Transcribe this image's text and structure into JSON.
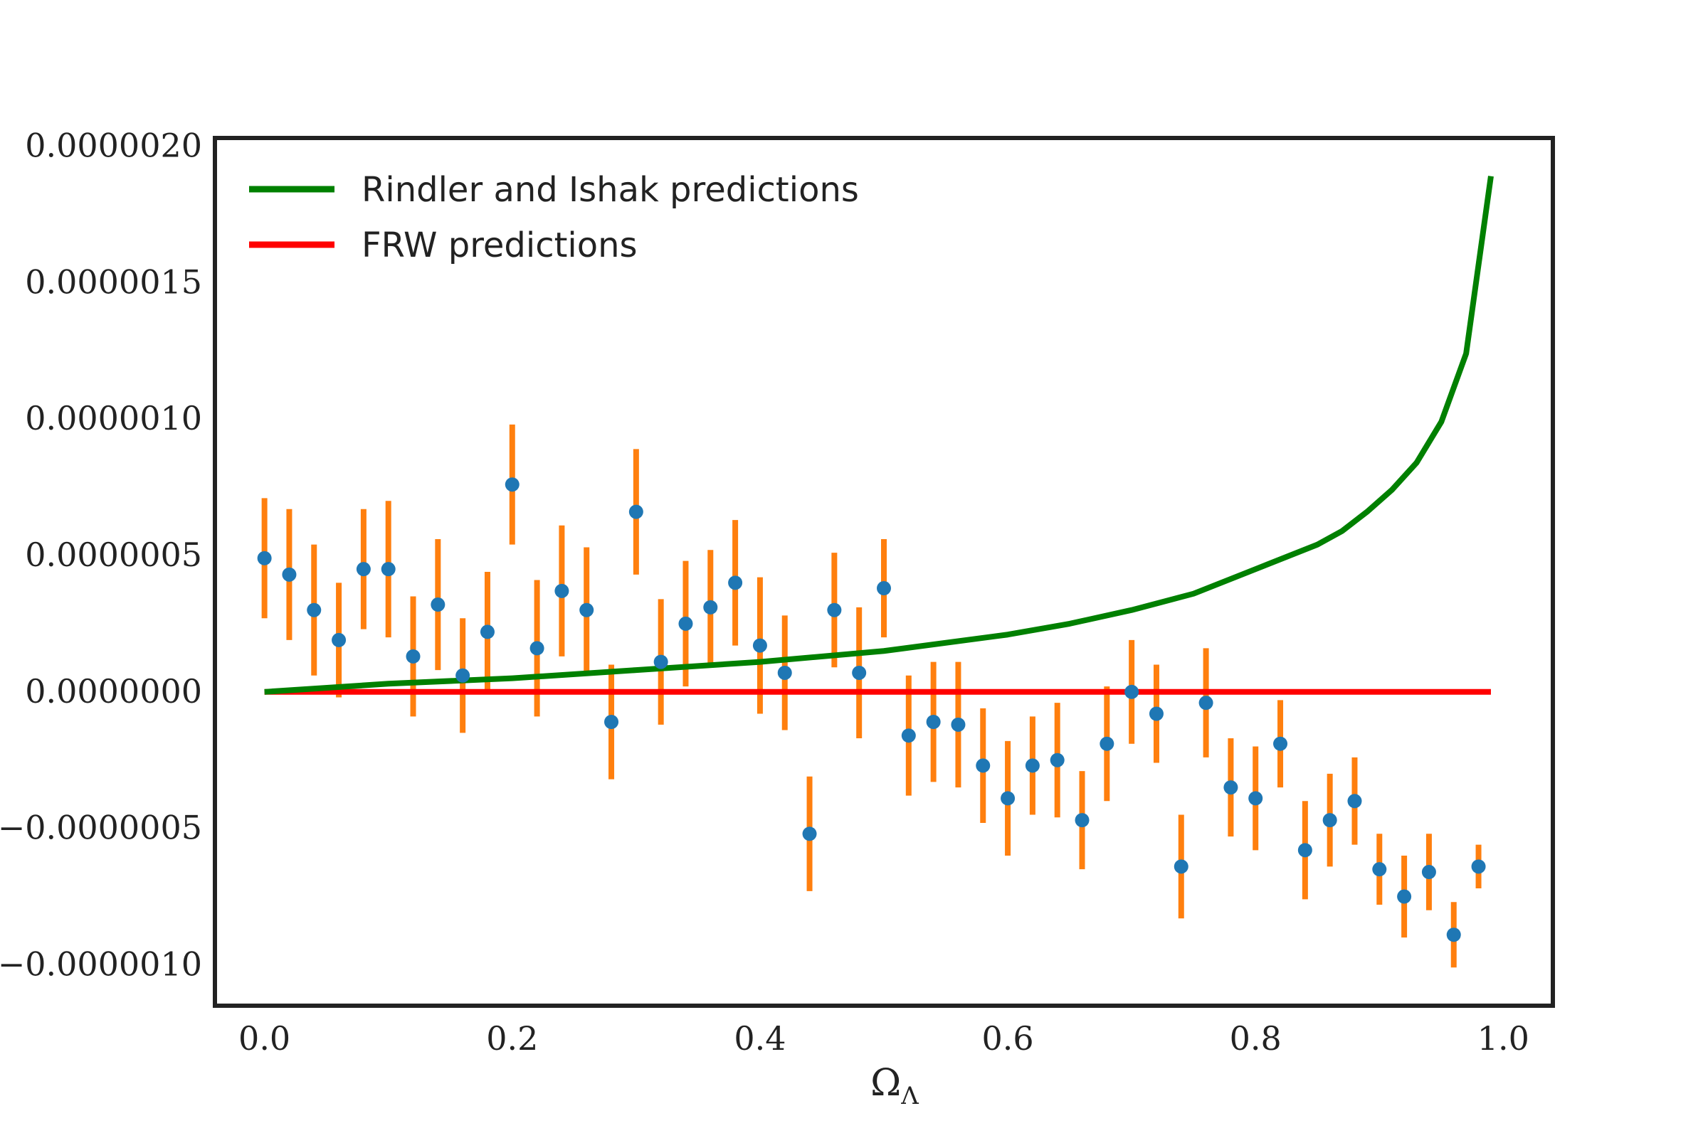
{
  "chart_data": {
    "type": "scatter",
    "xlabel": "Ω_Λ",
    "xlabel_main": "Ω",
    "xlabel_sub": "Λ",
    "ylabel": "",
    "xlim": [
      -0.04,
      1.04
    ],
    "ylim": [
      -1.15e-06,
      2.03e-06
    ],
    "xticks": [
      0.0,
      0.2,
      0.4,
      0.6,
      0.8,
      1.0
    ],
    "xtick_labels": [
      "0.0",
      "0.2",
      "0.4",
      "0.6",
      "0.8",
      "1.0"
    ],
    "yticks": [
      -1e-06,
      -5e-07,
      0.0,
      5e-07,
      1e-06,
      1.5e-06,
      2e-06
    ],
    "ytick_labels": [
      "−0.0000010",
      "−0.0000005",
      "0.0000000",
      "0.0000005",
      "0.0000010",
      "0.0000015",
      "0.0000020"
    ],
    "grid": false,
    "legend_position": "top-left",
    "legend": [
      {
        "label": "Rindler and Ishak predictions",
        "color": "#008000"
      },
      {
        "label": "FRW predictions",
        "color": "#ff0000"
      }
    ],
    "colors": {
      "points": "#1f77b4",
      "errorbars": "#ff7f0e",
      "rindler": "#008000",
      "frw": "#ff0000",
      "frame": "#222222"
    },
    "rindler_curve": {
      "name": "Rindler and Ishak predictions",
      "x": [
        0.0,
        0.1,
        0.2,
        0.3,
        0.4,
        0.5,
        0.6,
        0.65,
        0.7,
        0.75,
        0.8,
        0.85,
        0.87,
        0.89,
        0.91,
        0.93,
        0.95,
        0.97,
        0.99
      ],
      "y": [
        0.0,
        3e-08,
        5e-08,
        8e-08,
        1.1e-07,
        1.5e-07,
        2.1e-07,
        2.5e-07,
        3e-07,
        3.6e-07,
        4.5e-07,
        5.4e-07,
        5.9e-07,
        6.6e-07,
        7.4e-07,
        8.4e-07,
        9.9e-07,
        1.24e-06,
        1.89e-06
      ]
    },
    "frw_line": {
      "name": "FRW predictions",
      "x": [
        0.0,
        0.99
      ],
      "y": [
        0.0,
        0.0
      ]
    },
    "points": {
      "x": [
        0.0,
        0.02,
        0.04,
        0.06,
        0.08,
        0.1,
        0.12,
        0.14,
        0.16,
        0.18,
        0.2,
        0.22,
        0.24,
        0.26,
        0.28,
        0.3,
        0.32,
        0.34,
        0.36,
        0.38,
        0.4,
        0.42,
        0.44,
        0.46,
        0.48,
        0.5,
        0.52,
        0.54,
        0.56,
        0.58,
        0.6,
        0.62,
        0.64,
        0.66,
        0.68,
        0.7,
        0.72,
        0.74,
        0.76,
        0.78,
        0.8,
        0.82,
        0.84,
        0.86,
        0.88,
        0.9,
        0.92,
        0.94,
        0.96,
        0.98
      ],
      "y": [
        4.9e-07,
        4.3e-07,
        3e-07,
        1.9e-07,
        4.5e-07,
        4.5e-07,
        1.3e-07,
        3.2e-07,
        6e-08,
        2.2e-07,
        7.6e-07,
        1.6e-07,
        3.7e-07,
        3e-07,
        -1.1e-07,
        6.6e-07,
        1.1e-07,
        2.5e-07,
        3.1e-07,
        4e-07,
        1.7e-07,
        7e-08,
        -5.2e-07,
        3e-07,
        7e-08,
        3.8e-07,
        -1.6e-07,
        -1.1e-07,
        -1.2e-07,
        -2.7e-07,
        -3.9e-07,
        -2.7e-07,
        -2.5e-07,
        -4.7e-07,
        -1.9e-07,
        0.0,
        -8e-08,
        -6.4e-07,
        -4e-08,
        -3.5e-07,
        -3.9e-07,
        -1.9e-07,
        -5.8e-07,
        -4.7e-07,
        -4e-07,
        -6.5e-07,
        -7.5e-07,
        -6.6e-07,
        -8.9e-07,
        -6.4e-07
      ],
      "err": [
        2.2e-07,
        2.4e-07,
        2.4e-07,
        2.1e-07,
        2.2e-07,
        2.5e-07,
        2.2e-07,
        2.4e-07,
        2.1e-07,
        2.2e-07,
        2.2e-07,
        2.5e-07,
        2.4e-07,
        2.3e-07,
        2.1e-07,
        2.3e-07,
        2.3e-07,
        2.3e-07,
        2.1e-07,
        2.3e-07,
        2.5e-07,
        2.1e-07,
        2.1e-07,
        2.1e-07,
        2.4e-07,
        1.8e-07,
        2.2e-07,
        2.2e-07,
        2.3e-07,
        2.1e-07,
        2.1e-07,
        1.8e-07,
        2.1e-07,
        1.8e-07,
        2.1e-07,
        1.9e-07,
        1.8e-07,
        1.9e-07,
        2e-07,
        1.8e-07,
        1.9e-07,
        1.6e-07,
        1.8e-07,
        1.7e-07,
        1.6e-07,
        1.3e-07,
        1.5e-07,
        1.4e-07,
        1.2e-07,
        8e-08
      ]
    }
  }
}
